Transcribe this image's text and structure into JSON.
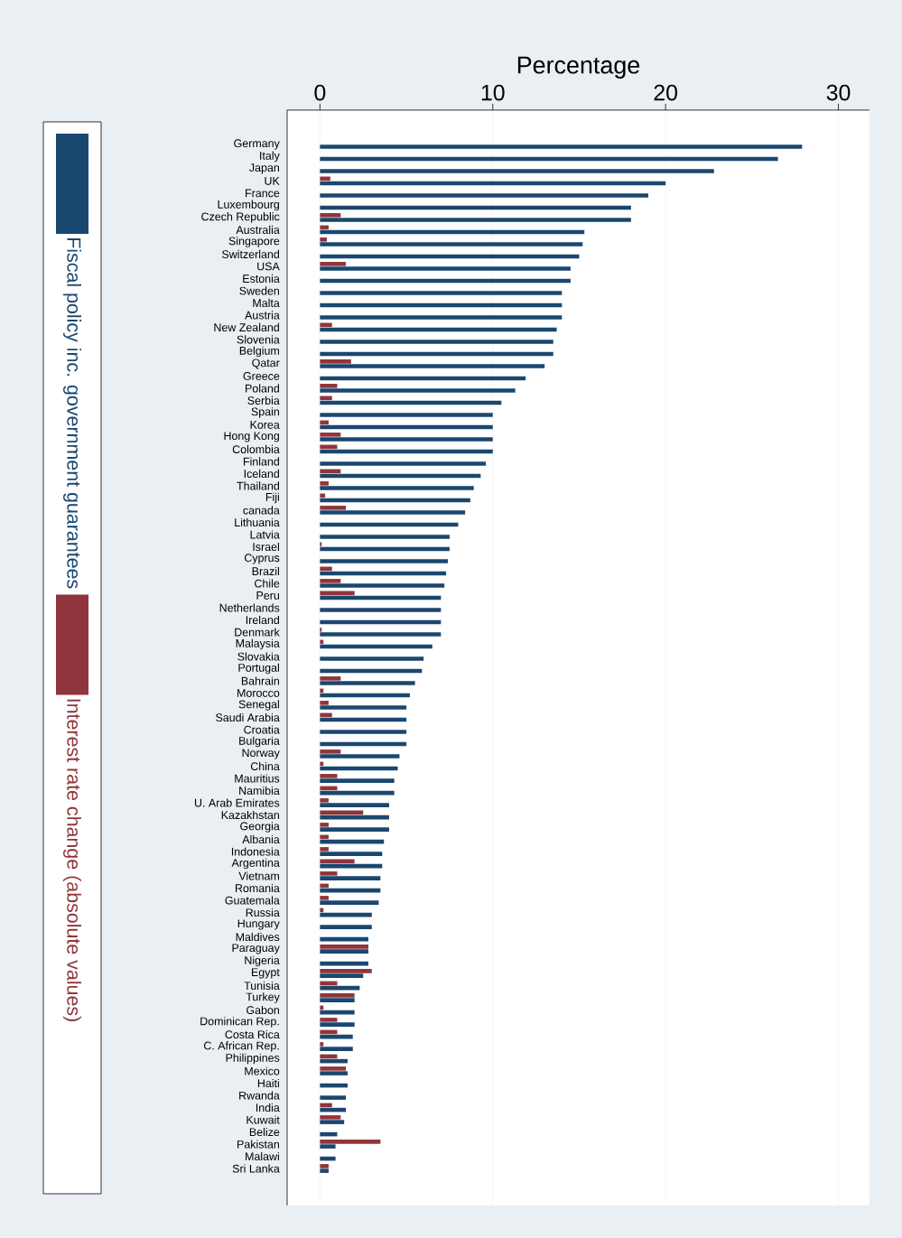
{
  "chart_data": {
    "type": "bar",
    "orientation": "horizontal",
    "xlabel": "Percentage",
    "categories": [
      "Germany",
      "Italy",
      "Japan",
      "UK",
      "France",
      "Luxembourg",
      "Czech Republic",
      "Australia",
      "Singapore",
      "Switzerland",
      "USA",
      "Estonia",
      "Sweden",
      "Malta",
      "Austria",
      "New Zealand",
      "Slovenia",
      "Belgium",
      "Qatar",
      "Greece",
      "Poland",
      "Serbia",
      "Spain",
      "Korea",
      "Hong Kong",
      "Colombia",
      "Finland",
      "Iceland",
      "Thailand",
      "Fiji",
      "canada",
      "Lithuania",
      "Latvia",
      "Israel",
      "Cyprus",
      "Brazil",
      "Chile",
      "Peru",
      "Netherlands",
      "Ireland",
      "Denmark",
      "Malaysia",
      "Slovakia",
      "Portugal",
      "Bahrain",
      "Morocco",
      "Senegal",
      "Saudi Arabia",
      "Croatia",
      "Bulgaria",
      "Norway",
      "China",
      "Mauritius",
      "Namibia",
      "U. Arab Emirates",
      "Kazakhstan",
      "Georgia",
      "Albania",
      "Indonesia",
      "Argentina",
      "Vietnam",
      "Romania",
      "Guatemala",
      "Russia",
      "Hungary",
      "Maldives",
      "Paraguay",
      "Nigeria",
      "Egypt",
      "Tunisia",
      "Turkey",
      "Gabon",
      "Dominican Rep.",
      "Costa Rica",
      "C. African Rep.",
      "Philippines",
      "Mexico",
      "Haiti",
      "Rwanda",
      "India",
      "Kuwait",
      "Belize",
      "Pakistan",
      "Malawi",
      "Sri Lanka"
    ],
    "series": [
      {
        "name": "Fiscal policy inc. government guarantees",
        "color": "#1a476f",
        "values": [
          27.9,
          26.5,
          22.8,
          20.0,
          19.0,
          18.0,
          18.0,
          15.3,
          15.2,
          15.0,
          14.5,
          14.5,
          14.0,
          14.0,
          14.0,
          13.7,
          13.5,
          13.5,
          13.0,
          11.9,
          11.3,
          10.5,
          10.0,
          10.0,
          10.0,
          10.0,
          9.6,
          9.3,
          8.9,
          8.7,
          8.4,
          8.0,
          7.5,
          7.5,
          7.4,
          7.3,
          7.2,
          7.0,
          7.0,
          7.0,
          7.0,
          6.5,
          6.0,
          5.9,
          5.5,
          5.2,
          5.0,
          5.0,
          5.0,
          5.0,
          4.6,
          4.5,
          4.3,
          4.3,
          4.0,
          4.0,
          4.0,
          3.7,
          3.6,
          3.6,
          3.5,
          3.5,
          3.4,
          3.0,
          3.0,
          2.8,
          2.8,
          2.8,
          2.5,
          2.3,
          2.0,
          2.0,
          2.0,
          1.9,
          1.9,
          1.6,
          1.6,
          1.6,
          1.5,
          1.5,
          1.4,
          1.0,
          0.9,
          0.9,
          0.5
        ]
      },
      {
        "name": "Interest rate change (absolute values)",
        "color": "#90353b",
        "values": [
          null,
          null,
          null,
          0.6,
          null,
          null,
          1.2,
          0.5,
          0.4,
          null,
          1.5,
          null,
          null,
          null,
          null,
          0.7,
          null,
          null,
          1.8,
          null,
          1.0,
          0.7,
          null,
          0.5,
          1.2,
          1.0,
          null,
          1.2,
          0.5,
          0.3,
          1.5,
          null,
          null,
          0.1,
          null,
          0.7,
          1.2,
          2.0,
          null,
          null,
          0.1,
          0.2,
          null,
          null,
          1.2,
          0.2,
          0.5,
          0.7,
          null,
          null,
          1.2,
          0.2,
          1.0,
          1.0,
          0.5,
          2.5,
          0.5,
          0.5,
          0.5,
          2.0,
          1.0,
          0.5,
          0.5,
          0.2,
          null,
          null,
          2.8,
          null,
          3.0,
          1.0,
          2.0,
          0.2,
          1.0,
          1.0,
          0.2,
          1.0,
          1.5,
          null,
          null,
          0.7,
          1.2,
          null,
          3.5,
          null,
          0.5
        ]
      }
    ],
    "xlim": [
      -1.9,
      31.8
    ],
    "xticks": [
      0,
      10,
      20,
      30
    ],
    "grid": "x",
    "legend": "left"
  }
}
